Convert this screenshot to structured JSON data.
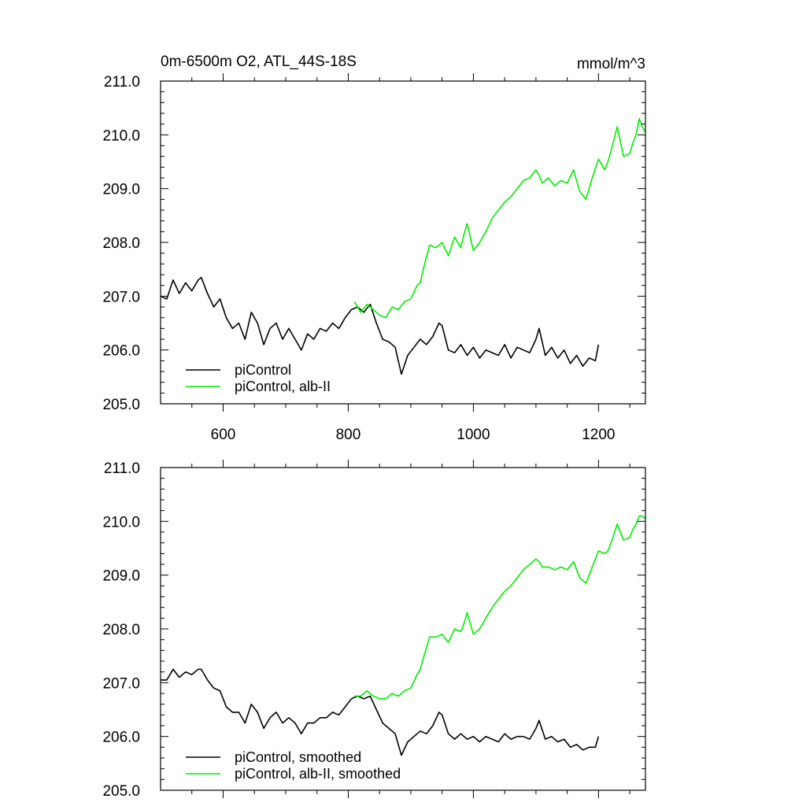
{
  "colors": {
    "control": "#000000",
    "experiment": "#00ee00"
  },
  "chart_data": [
    {
      "type": "line",
      "title": "0m-6500m O2, ATL_44S-18S",
      "units": "mmol/m^3",
      "xlim": [
        500,
        1275
      ],
      "ylim": [
        205.0,
        211.0
      ],
      "xticks": [
        "600",
        "800",
        "1000",
        "1200"
      ],
      "yticks": [
        "205.0",
        "206.0",
        "207.0",
        "208.0",
        "209.0",
        "210.0",
        "211.0"
      ],
      "legend_position": "bottom-left",
      "series": [
        {
          "name": "piControl",
          "color": "#000000",
          "x": [
            500,
            510,
            520,
            530,
            540,
            550,
            560,
            565,
            575,
            585,
            595,
            605,
            615,
            625,
            635,
            645,
            655,
            665,
            675,
            685,
            695,
            705,
            715,
            725,
            735,
            745,
            755,
            765,
            775,
            785,
            795,
            805,
            815,
            825,
            835,
            845,
            855,
            865,
            875,
            880,
            885,
            895,
            905,
            915,
            925,
            935,
            945,
            950,
            960,
            970,
            980,
            990,
            1000,
            1010,
            1020,
            1030,
            1040,
            1050,
            1060,
            1070,
            1080,
            1090,
            1100,
            1105,
            1115,
            1125,
            1135,
            1145,
            1155,
            1165,
            1175,
            1185,
            1195,
            1200
          ],
          "y": [
            207.0,
            206.95,
            207.3,
            207.05,
            207.25,
            207.1,
            207.3,
            207.35,
            207.05,
            206.8,
            206.95,
            206.6,
            206.4,
            206.5,
            206.2,
            206.7,
            206.5,
            206.1,
            206.4,
            206.5,
            206.2,
            206.4,
            206.2,
            206.0,
            206.3,
            206.2,
            206.4,
            206.35,
            206.5,
            206.4,
            206.6,
            206.75,
            206.8,
            206.7,
            206.85,
            206.5,
            206.2,
            206.15,
            206.05,
            205.8,
            205.55,
            205.9,
            206.05,
            206.2,
            206.1,
            206.25,
            206.5,
            206.45,
            206.0,
            205.95,
            206.1,
            205.9,
            206.05,
            205.85,
            206.0,
            205.95,
            205.9,
            206.1,
            205.85,
            206.05,
            206.0,
            205.95,
            206.2,
            206.4,
            205.9,
            206.05,
            205.85,
            206.0,
            205.75,
            205.9,
            205.7,
            205.85,
            205.8,
            206.1
          ]
        },
        {
          "name": "piControl, alb-II",
          "color": "#00ee00",
          "x": [
            810,
            820,
            830,
            840,
            850,
            860,
            870,
            880,
            890,
            900,
            910,
            915,
            920,
            930,
            940,
            950,
            960,
            970,
            980,
            985,
            990,
            1000,
            1010,
            1020,
            1030,
            1040,
            1050,
            1060,
            1070,
            1080,
            1090,
            1100,
            1105,
            1110,
            1120,
            1130,
            1140,
            1150,
            1160,
            1170,
            1180,
            1190,
            1200,
            1210,
            1215,
            1220,
            1230,
            1240,
            1250,
            1255,
            1260,
            1265,
            1270,
            1275
          ],
          "y": [
            206.9,
            206.7,
            206.85,
            206.75,
            206.65,
            206.6,
            206.8,
            206.75,
            206.9,
            206.95,
            207.2,
            207.25,
            207.5,
            207.95,
            207.9,
            208.0,
            207.75,
            208.1,
            207.9,
            208.15,
            208.35,
            207.85,
            208.0,
            208.2,
            208.45,
            208.6,
            208.75,
            208.85,
            209.0,
            209.15,
            209.2,
            209.35,
            209.25,
            209.1,
            209.2,
            209.05,
            209.15,
            209.1,
            209.35,
            208.95,
            208.8,
            209.2,
            209.55,
            209.35,
            209.5,
            209.7,
            210.15,
            209.6,
            209.65,
            209.85,
            210.0,
            210.3,
            210.15,
            210.05
          ]
        }
      ]
    },
    {
      "type": "line",
      "xlim": [
        500,
        1275
      ],
      "ylim": [
        205.0,
        211.0
      ],
      "yticks": [
        "205.0",
        "206.0",
        "207.0",
        "208.0",
        "209.0",
        "210.0",
        "211.0"
      ],
      "legend_position": "bottom-left",
      "series": [
        {
          "name": "piControl, smoothed",
          "color": "#000000",
          "x": [
            500,
            510,
            520,
            530,
            540,
            550,
            560,
            565,
            575,
            585,
            595,
            605,
            615,
            625,
            635,
            645,
            655,
            665,
            675,
            685,
            695,
            705,
            715,
            725,
            735,
            745,
            755,
            765,
            775,
            785,
            795,
            805,
            815,
            825,
            835,
            845,
            855,
            865,
            875,
            880,
            885,
            895,
            905,
            915,
            925,
            935,
            945,
            950,
            960,
            970,
            980,
            990,
            1000,
            1010,
            1020,
            1030,
            1040,
            1050,
            1060,
            1070,
            1080,
            1090,
            1100,
            1105,
            1115,
            1125,
            1135,
            1145,
            1155,
            1165,
            1175,
            1185,
            1195,
            1200
          ],
          "y": [
            207.05,
            207.05,
            207.25,
            207.1,
            207.2,
            207.15,
            207.25,
            207.25,
            207.05,
            206.9,
            206.85,
            206.55,
            206.45,
            206.45,
            206.25,
            206.6,
            206.45,
            206.15,
            206.35,
            206.45,
            206.25,
            206.35,
            206.25,
            206.05,
            206.25,
            206.25,
            206.35,
            206.35,
            206.45,
            206.4,
            206.55,
            206.7,
            206.75,
            206.7,
            206.75,
            206.5,
            206.25,
            206.15,
            206.05,
            205.85,
            205.65,
            205.9,
            206.0,
            206.1,
            206.05,
            206.2,
            206.45,
            206.4,
            206.05,
            205.95,
            206.05,
            205.95,
            206.0,
            205.9,
            206.0,
            205.95,
            205.9,
            206.05,
            205.95,
            206.0,
            206.0,
            205.95,
            206.15,
            206.3,
            205.95,
            206.0,
            205.9,
            205.95,
            205.8,
            205.85,
            205.75,
            205.8,
            205.8,
            206.0
          ]
        },
        {
          "name": "piControl, alb-II, smoothed",
          "color": "#00ee00",
          "x": [
            810,
            820,
            830,
            840,
            850,
            860,
            870,
            880,
            890,
            900,
            910,
            915,
            920,
            930,
            940,
            950,
            960,
            970,
            980,
            985,
            990,
            1000,
            1010,
            1020,
            1030,
            1040,
            1050,
            1060,
            1070,
            1080,
            1090,
            1100,
            1105,
            1110,
            1120,
            1130,
            1140,
            1150,
            1160,
            1170,
            1180,
            1190,
            1200,
            1210,
            1215,
            1220,
            1230,
            1240,
            1250,
            1255,
            1260,
            1265,
            1270,
            1275
          ],
          "y": [
            206.75,
            206.75,
            206.85,
            206.75,
            206.7,
            206.7,
            206.8,
            206.75,
            206.85,
            206.9,
            207.15,
            207.25,
            207.45,
            207.85,
            207.85,
            207.9,
            207.75,
            208.0,
            207.95,
            208.1,
            208.3,
            207.9,
            208.0,
            208.2,
            208.4,
            208.55,
            208.7,
            208.8,
            208.95,
            209.1,
            209.2,
            209.3,
            209.25,
            209.15,
            209.15,
            209.1,
            209.15,
            209.1,
            209.25,
            208.95,
            208.85,
            209.15,
            209.45,
            209.4,
            209.45,
            209.6,
            209.95,
            209.65,
            209.7,
            209.85,
            209.95,
            210.1,
            210.1,
            210.05
          ]
        }
      ]
    }
  ]
}
